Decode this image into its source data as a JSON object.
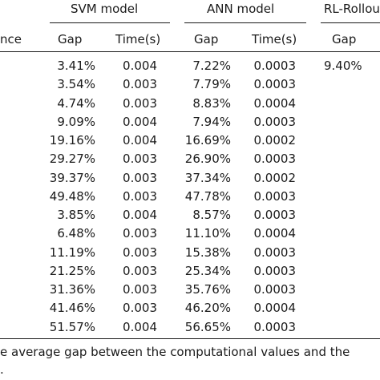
{
  "table": {
    "group_headers": {
      "svm": "SVM model",
      "ann": "ANN model",
      "rl": "RL-Rollou"
    },
    "col_headers": {
      "instance": "nce",
      "svm_gap": "Gap",
      "svm_time": "Time(s)",
      "ann_gap": "Gap",
      "ann_time": "Time(s)",
      "rl_gap": "Gap"
    },
    "rows": [
      {
        "svm_gap": "3.41%",
        "svm_time": "0.004",
        "ann_gap": "7.22%",
        "ann_time": "0.0003",
        "rl_gap": "9.40%"
      },
      {
        "svm_gap": "3.54%",
        "svm_time": "0.003",
        "ann_gap": "7.79%",
        "ann_time": "0.0003",
        "rl_gap": ""
      },
      {
        "svm_gap": "4.74%",
        "svm_time": "0.003",
        "ann_gap": "8.83%",
        "ann_time": "0.0004",
        "rl_gap": ""
      },
      {
        "svm_gap": "9.09%",
        "svm_time": "0.004",
        "ann_gap": "7.94%",
        "ann_time": "0.0003",
        "rl_gap": ""
      },
      {
        "svm_gap": "19.16%",
        "svm_time": "0.004",
        "ann_gap": "16.69%",
        "ann_time": "0.0002",
        "rl_gap": ""
      },
      {
        "svm_gap": "29.27%",
        "svm_time": "0.003",
        "ann_gap": "26.90%",
        "ann_time": "0.0003",
        "rl_gap": ""
      },
      {
        "svm_gap": "39.37%",
        "svm_time": "0.003",
        "ann_gap": "37.34%",
        "ann_time": "0.0002",
        "rl_gap": ""
      },
      {
        "svm_gap": "49.48%",
        "svm_time": "0.003",
        "ann_gap": "47.78%",
        "ann_time": "0.0003",
        "rl_gap": ""
      },
      {
        "svm_gap": "3.85%",
        "svm_time": "0.004",
        "ann_gap": "8.57%",
        "ann_time": "0.0003",
        "rl_gap": ""
      },
      {
        "svm_gap": "6.48%",
        "svm_time": "0.003",
        "ann_gap": "11.10%",
        "ann_time": "0.0004",
        "rl_gap": ""
      },
      {
        "svm_gap": "11.19%",
        "svm_time": "0.003",
        "ann_gap": "15.38%",
        "ann_time": "0.0003",
        "rl_gap": ""
      },
      {
        "svm_gap": "21.25%",
        "svm_time": "0.003",
        "ann_gap": "25.34%",
        "ann_time": "0.0003",
        "rl_gap": ""
      },
      {
        "svm_gap": "31.36%",
        "svm_time": "0.003",
        "ann_gap": "35.76%",
        "ann_time": "0.0003",
        "rl_gap": ""
      },
      {
        "svm_gap": "41.46%",
        "svm_time": "0.003",
        "ann_gap": "46.20%",
        "ann_time": "0.0004",
        "rl_gap": ""
      },
      {
        "svm_gap": "51.57%",
        "svm_time": "0.004",
        "ann_gap": "56.65%",
        "ann_time": "0.0003",
        "rl_gap": ""
      }
    ]
  },
  "footnote": {
    "line1": "e average gap between the computational values and the",
    "line2": "."
  }
}
